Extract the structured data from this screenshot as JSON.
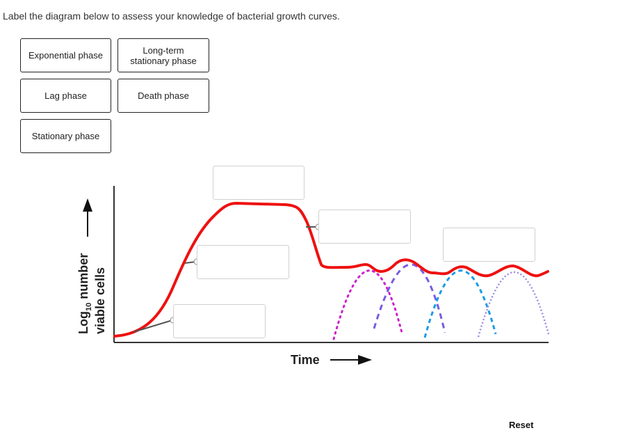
{
  "instructions": "Label the diagram below to assess your knowledge of bacterial growth curves.",
  "labels": [
    {
      "text": "Exponential phase"
    },
    {
      "text": "Long-term\nstationary phase"
    },
    {
      "text": "Lag phase"
    },
    {
      "text": "Death phase"
    },
    {
      "text": "Stationary phase"
    }
  ],
  "axes": {
    "x_label": "Time",
    "y_label_line1_pre": "Log",
    "y_label_sub": "10",
    "y_label_line1_post": " number",
    "y_label_line2": "viable cells"
  },
  "colors": {
    "curve": "#ee1111",
    "magenta": "#cc22cc",
    "purple": "#7a5ce0",
    "blue": "#1a9be8",
    "lavender": "#9a8ce0"
  },
  "reset_label": "Reset"
}
